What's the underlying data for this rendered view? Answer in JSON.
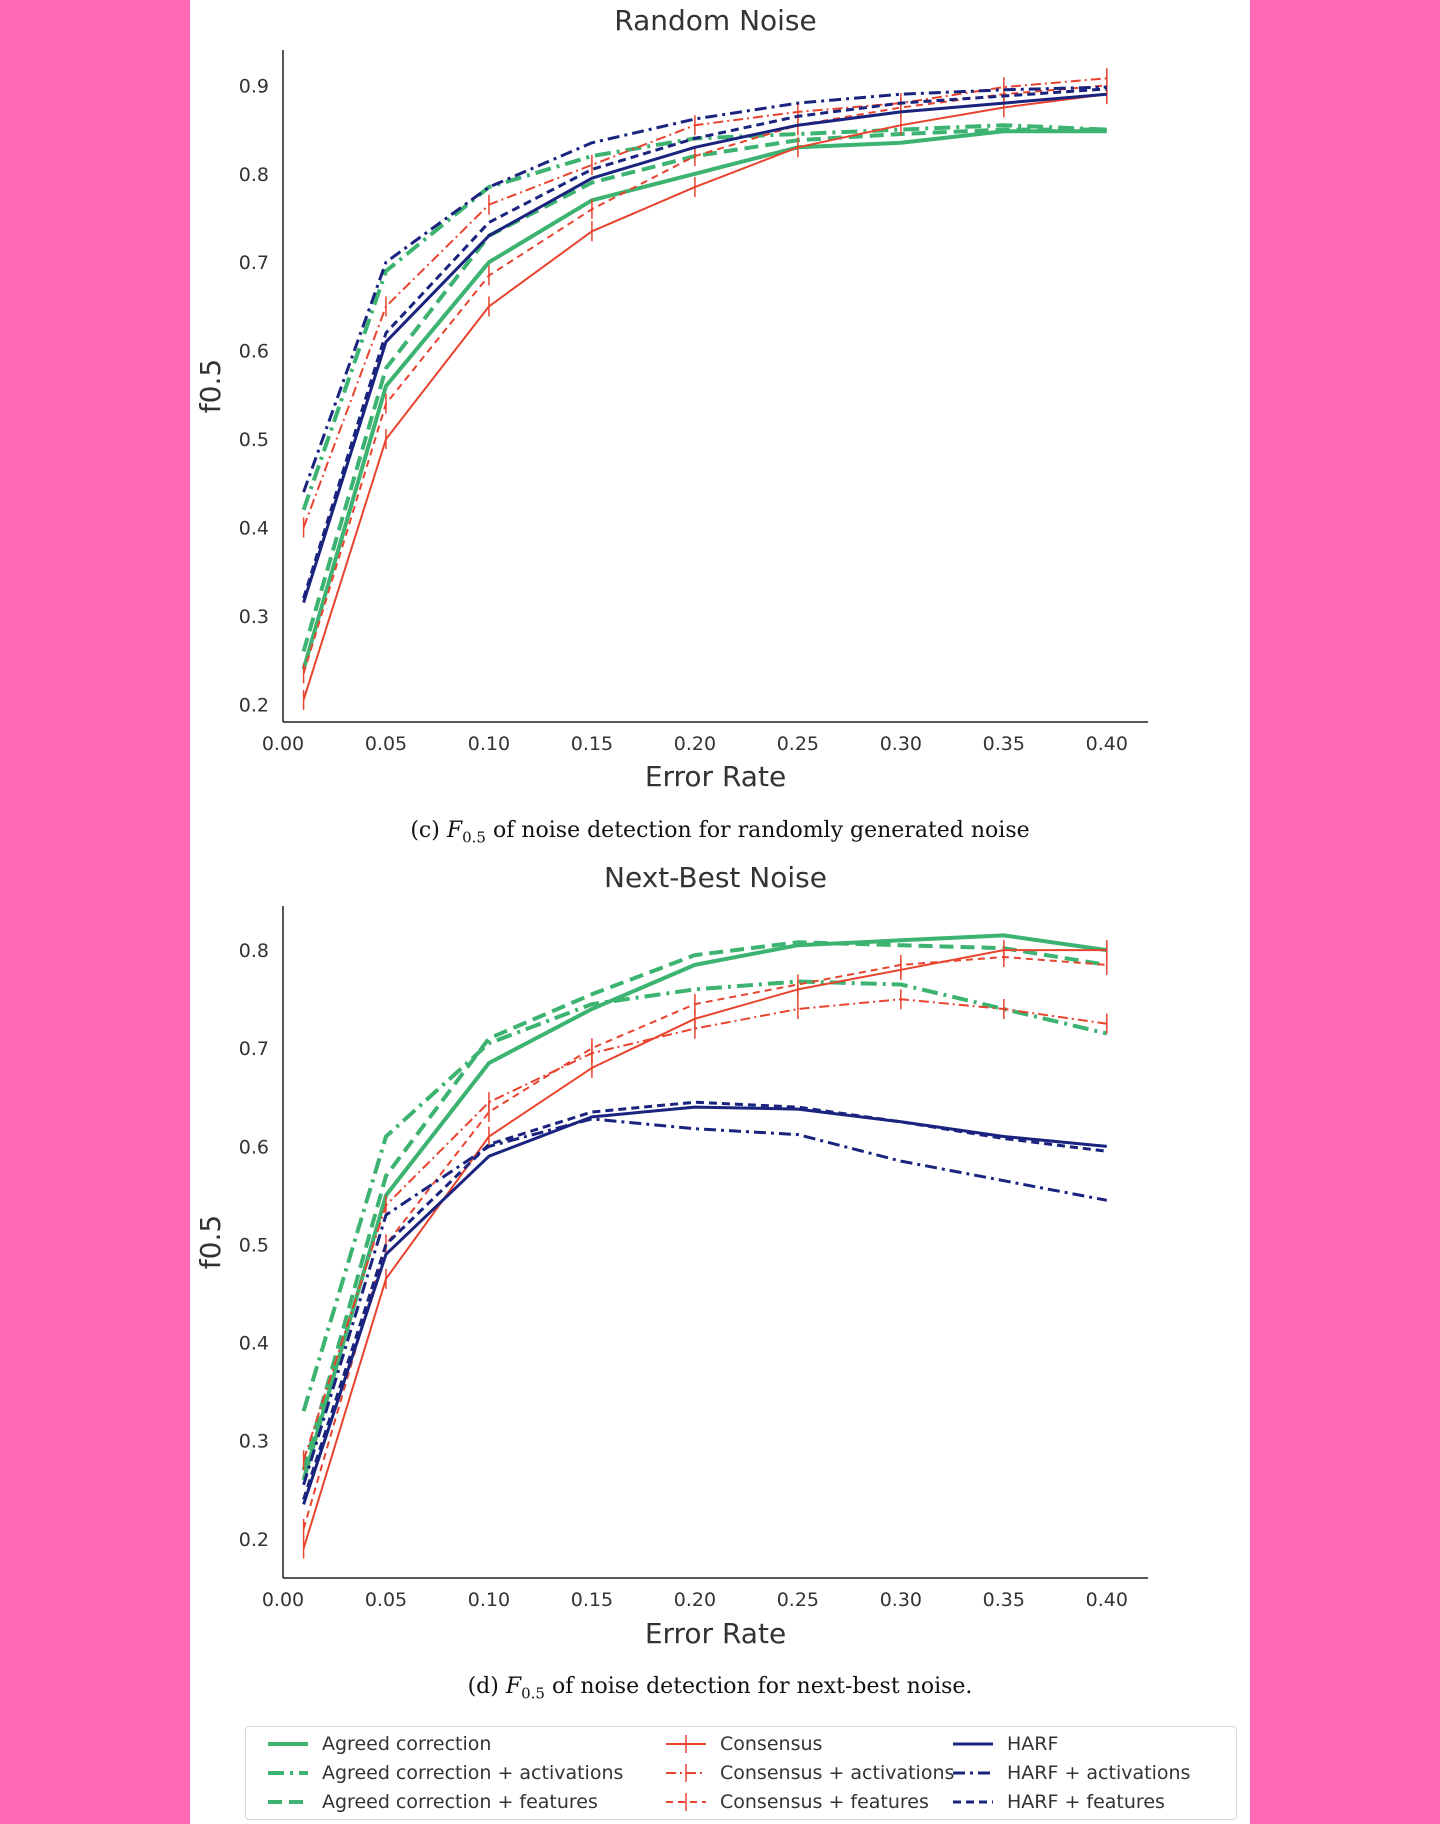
{
  "legend": [
    {
      "key": "ac",
      "label": "Agreed correction"
    },
    {
      "key": "ac_act",
      "label": "Agreed correction + activations"
    },
    {
      "key": "ac_feat",
      "label": "Agreed correction + features"
    },
    {
      "key": "co",
      "label": "Consensus"
    },
    {
      "key": "co_act",
      "label": "Consensus + activations"
    },
    {
      "key": "co_feat",
      "label": "Consensus + features"
    },
    {
      "key": "ha",
      "label": "HARF"
    },
    {
      "key": "ha_act",
      "label": "HARF + activations"
    },
    {
      "key": "ha_feat",
      "label": "HARF + features"
    }
  ],
  "styles": {
    "ac": {
      "color": "#3cb371",
      "dash": "",
      "marker": false,
      "width": 4
    },
    "ac_act": {
      "color": "#3cb371",
      "dash": "16,6,3,6",
      "marker": false,
      "width": 4
    },
    "ac_feat": {
      "color": "#3cb371",
      "dash": "14,7",
      "marker": false,
      "width": 4
    },
    "co": {
      "color": "#e8432e",
      "dash": "",
      "marker": true,
      "width": 2
    },
    "co_act": {
      "color": "#e8432e",
      "dash": "10,4,2,4",
      "marker": true,
      "width": 2
    },
    "co_feat": {
      "color": "#e8432e",
      "dash": "7,5",
      "marker": true,
      "width": 2
    },
    "ha": {
      "color": "#1a237e",
      "dash": "",
      "marker": false,
      "width": 3
    },
    "ha_act": {
      "color": "#1a237e",
      "dash": "12,5,3,5",
      "marker": false,
      "width": 3
    },
    "ha_feat": {
      "color": "#1a237e",
      "dash": "8,5",
      "marker": false,
      "width": 3
    }
  },
  "chart_data": [
    {
      "type": "line",
      "title": "Random Noise",
      "xlabel": "Error Rate",
      "ylabel": "f0.5",
      "caption_prefix": "(c)",
      "caption_symbol": "F",
      "caption_sub": "0.5",
      "caption_text": "of noise detection for randomly generated noise",
      "x": [
        0.01,
        0.05,
        0.1,
        0.15,
        0.2,
        0.25,
        0.3,
        0.35,
        0.4
      ],
      "xticks": [
        "0.00",
        "0.05",
        "0.10",
        "0.15",
        "0.20",
        "0.25",
        "0.30",
        "0.35",
        "0.40"
      ],
      "yticks": [
        "0.2",
        "0.3",
        "0.4",
        "0.5",
        "0.6",
        "0.7",
        "0.8",
        "0.9"
      ],
      "xlim": [
        0.0,
        0.42
      ],
      "ylim": [
        0.18,
        0.94
      ],
      "series": [
        {
          "key": "ac",
          "values": [
            0.24,
            0.56,
            0.7,
            0.77,
            0.8,
            0.83,
            0.835,
            0.848,
            0.848
          ]
        },
        {
          "key": "ac_act",
          "values": [
            0.42,
            0.69,
            0.785,
            0.82,
            0.84,
            0.845,
            0.85,
            0.855,
            0.85
          ]
        },
        {
          "key": "ac_feat",
          "values": [
            0.26,
            0.58,
            0.73,
            0.79,
            0.82,
            0.838,
            0.845,
            0.85,
            0.85
          ]
        },
        {
          "key": "co",
          "values": [
            0.205,
            0.5,
            0.65,
            0.735,
            0.785,
            0.83,
            0.855,
            0.875,
            0.89
          ]
        },
        {
          "key": "co_act",
          "values": [
            0.4,
            0.65,
            0.765,
            0.81,
            0.855,
            0.87,
            0.88,
            0.898,
            0.908
          ]
        },
        {
          "key": "co_feat",
          "values": [
            0.235,
            0.54,
            0.685,
            0.76,
            0.82,
            0.855,
            0.875,
            0.89,
            0.9
          ]
        },
        {
          "key": "ha",
          "values": [
            0.315,
            0.61,
            0.73,
            0.795,
            0.83,
            0.855,
            0.87,
            0.88,
            0.89
          ]
        },
        {
          "key": "ha_act",
          "values": [
            0.44,
            0.7,
            0.785,
            0.835,
            0.862,
            0.88,
            0.89,
            0.895,
            0.898
          ]
        },
        {
          "key": "ha_feat",
          "values": [
            0.32,
            0.62,
            0.745,
            0.805,
            0.84,
            0.865,
            0.88,
            0.888,
            0.896
          ]
        }
      ]
    },
    {
      "type": "line",
      "title": "Next-Best Noise",
      "xlabel": "Error Rate",
      "ylabel": "f0.5",
      "caption_prefix": "(d)",
      "caption_symbol": "F",
      "caption_sub": "0.5",
      "caption_text": "of noise detection for next-best noise.",
      "x": [
        0.01,
        0.05,
        0.1,
        0.15,
        0.2,
        0.25,
        0.3,
        0.35,
        0.4
      ],
      "xticks": [
        "0.00",
        "0.05",
        "0.10",
        "0.15",
        "0.20",
        "0.25",
        "0.30",
        "0.35",
        "0.40"
      ],
      "yticks": [
        "0.2",
        "0.3",
        "0.4",
        "0.5",
        "0.6",
        "0.7",
        "0.8"
      ],
      "xlim": [
        0.0,
        0.42
      ],
      "ylim": [
        0.16,
        0.845
      ],
      "series": [
        {
          "key": "ac",
          "values": [
            0.26,
            0.55,
            0.685,
            0.74,
            0.785,
            0.805,
            0.81,
            0.815,
            0.8
          ]
        },
        {
          "key": "ac_act",
          "values": [
            0.33,
            0.61,
            0.705,
            0.745,
            0.76,
            0.768,
            0.765,
            0.74,
            0.715
          ]
        },
        {
          "key": "ac_feat",
          "values": [
            0.27,
            0.57,
            0.71,
            0.755,
            0.795,
            0.808,
            0.805,
            0.802,
            0.785
          ]
        },
        {
          "key": "co",
          "values": [
            0.19,
            0.465,
            0.61,
            0.68,
            0.73,
            0.76,
            0.78,
            0.8,
            0.8
          ]
        },
        {
          "key": "co_act",
          "values": [
            0.28,
            0.54,
            0.645,
            0.695,
            0.72,
            0.74,
            0.75,
            0.74,
            0.725
          ]
        },
        {
          "key": "co_feat",
          "values": [
            0.21,
            0.5,
            0.635,
            0.7,
            0.745,
            0.765,
            0.785,
            0.793,
            0.785
          ]
        },
        {
          "key": "ha",
          "values": [
            0.235,
            0.49,
            0.59,
            0.63,
            0.64,
            0.638,
            0.625,
            0.61,
            0.6
          ]
        },
        {
          "key": "ha_act",
          "values": [
            0.255,
            0.53,
            0.6,
            0.628,
            0.618,
            0.612,
            0.585,
            0.565,
            0.545
          ]
        },
        {
          "key": "ha_feat",
          "values": [
            0.24,
            0.5,
            0.602,
            0.635,
            0.645,
            0.64,
            0.625,
            0.608,
            0.595
          ]
        }
      ]
    }
  ]
}
